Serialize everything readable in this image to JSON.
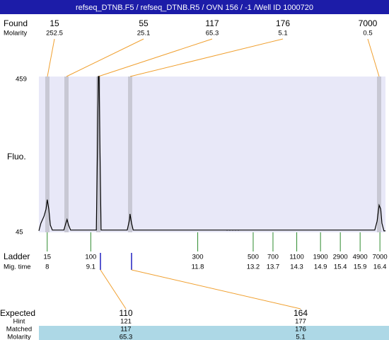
{
  "header": {
    "title": "refseq_DTNB.F5 / refseq_DTNB.R5 / OVN 156 / -1 /Well ID 1000720"
  },
  "found": {
    "label": "Found",
    "molarity_label": "Molarity",
    "sizes": [
      15,
      55,
      117,
      176,
      7000
    ],
    "molarity": [
      252.5,
      25.1,
      65.3,
      5.1,
      0.5
    ]
  },
  "chart_data": {
    "type": "line",
    "y_label": "Fluo.",
    "x": [
      7.79,
      7.84,
      7.92,
      7.97,
      8.0,
      8.04,
      8.08,
      8.13,
      8.42,
      8.47,
      8.5,
      8.54,
      8.59,
      9.24,
      9.27,
      9.29,
      9.31,
      9.33,
      9.36,
      10.02,
      10.08,
      10.09,
      10.13,
      10.17,
      16.27,
      16.33,
      16.38,
      16.42,
      16.45,
      16.5,
      16.54
    ],
    "values": [
      49,
      69,
      88,
      107,
      132,
      107,
      64,
      51,
      51,
      69,
      79,
      64,
      51,
      51,
      286,
      459,
      459,
      286,
      51,
      51,
      79,
      94,
      69,
      51,
      51,
      75,
      117,
      107,
      69,
      49,
      49
    ],
    "color": "#000000",
    "xlim": [
      7.79,
      16.54
    ],
    "ylim": [
      45,
      459
    ],
    "yticks": [
      459,
      45
    ]
  },
  "ladder": {
    "label": "Ladder",
    "time_label": "Mig. time",
    "sizes": [
      15,
      100,
      300,
      500,
      700,
      1100,
      1900,
      2900,
      4900,
      7000
    ],
    "times": [
      8,
      9.1,
      11.8,
      13.2,
      13.7,
      14.3,
      14.9,
      15.4,
      15.9,
      16.4
    ]
  },
  "expected": {
    "labels": [
      "Expected",
      "Hint",
      "Matched",
      "Molarity"
    ],
    "columns": [
      [
        "110",
        "121",
        "117",
        "65.3"
      ],
      [
        "164",
        "177",
        "176",
        "5.1"
      ]
    ]
  }
}
